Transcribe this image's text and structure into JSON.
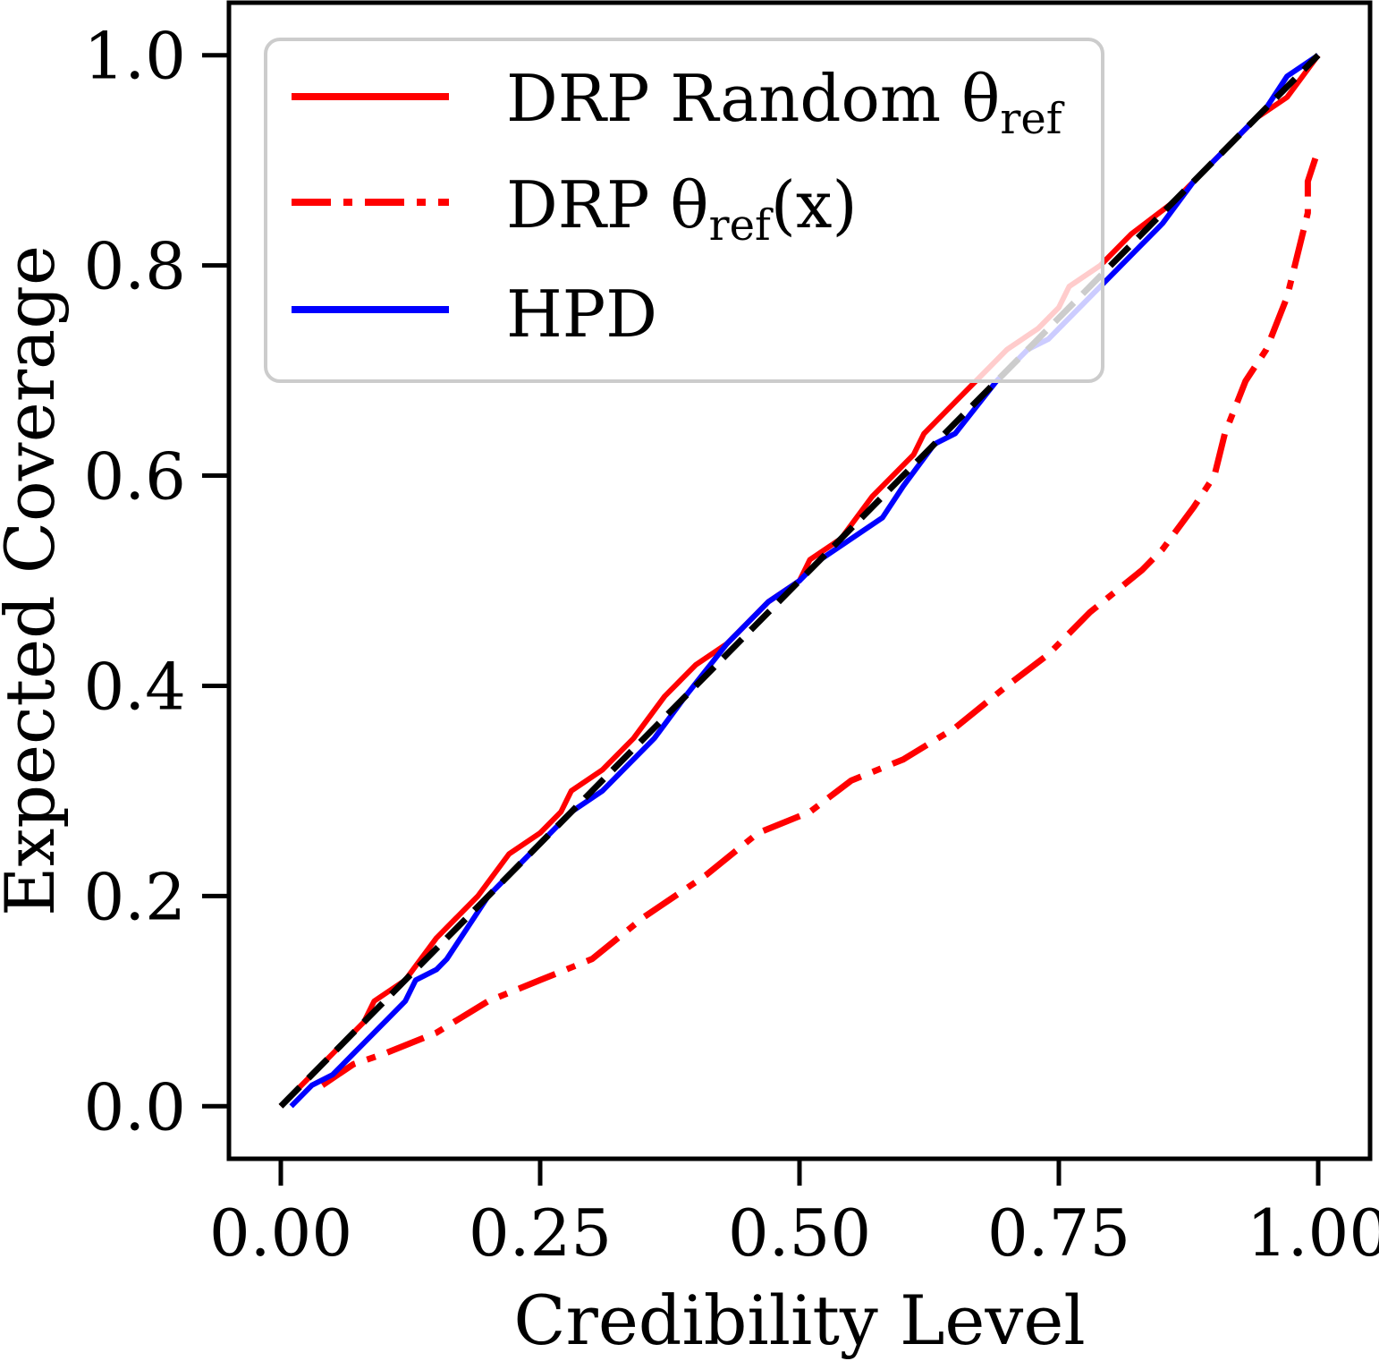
{
  "chart_data": {
    "type": "line",
    "xlabel": "Credibility Level",
    "ylabel": "Expected Coverage",
    "xlim": [
      -0.05,
      1.05
    ],
    "ylim": [
      -0.05,
      1.05
    ],
    "x_ticks": [
      "0.00",
      "0.25",
      "0.50",
      "0.75",
      "1.00"
    ],
    "y_ticks": [
      "0.0",
      "0.2",
      "0.4",
      "0.6",
      "0.8",
      "1.0"
    ],
    "grid": false,
    "legend_position": "top-left",
    "series": [
      {
        "name": "DRP Random θref",
        "legend_main": "DRP Random θ",
        "legend_sub": "ref",
        "color": "#ff0000",
        "style": "solid",
        "points": [
          [
            0.0,
            0.0
          ],
          [
            0.03,
            0.03
          ],
          [
            0.06,
            0.06
          ],
          [
            0.08,
            0.08
          ],
          [
            0.09,
            0.1
          ],
          [
            0.12,
            0.12
          ],
          [
            0.15,
            0.16
          ],
          [
            0.19,
            0.2
          ],
          [
            0.22,
            0.24
          ],
          [
            0.25,
            0.26
          ],
          [
            0.27,
            0.28
          ],
          [
            0.28,
            0.3
          ],
          [
            0.31,
            0.32
          ],
          [
            0.34,
            0.35
          ],
          [
            0.37,
            0.39
          ],
          [
            0.4,
            0.42
          ],
          [
            0.43,
            0.44
          ],
          [
            0.47,
            0.48
          ],
          [
            0.5,
            0.5
          ],
          [
            0.51,
            0.52
          ],
          [
            0.54,
            0.54
          ],
          [
            0.57,
            0.58
          ],
          [
            0.61,
            0.62
          ],
          [
            0.62,
            0.64
          ],
          [
            0.65,
            0.67
          ],
          [
            0.68,
            0.7
          ],
          [
            0.7,
            0.72
          ],
          [
            0.73,
            0.74
          ],
          [
            0.75,
            0.76
          ],
          [
            0.76,
            0.78
          ],
          [
            0.79,
            0.8
          ],
          [
            0.82,
            0.83
          ],
          [
            0.86,
            0.86
          ],
          [
            0.88,
            0.88
          ],
          [
            0.91,
            0.91
          ],
          [
            0.94,
            0.94
          ],
          [
            0.97,
            0.96
          ],
          [
            1.0,
            1.0
          ]
        ]
      },
      {
        "name": "DRP θref(x)",
        "legend_main": "DRP θ",
        "legend_sub": "ref",
        "legend_tail": "(x)",
        "color": "#ff0000",
        "style": "dashdot",
        "points": [
          [
            0.04,
            0.02
          ],
          [
            0.07,
            0.04
          ],
          [
            0.1,
            0.05
          ],
          [
            0.15,
            0.07
          ],
          [
            0.2,
            0.1
          ],
          [
            0.25,
            0.12
          ],
          [
            0.3,
            0.14
          ],
          [
            0.35,
            0.18
          ],
          [
            0.41,
            0.22
          ],
          [
            0.46,
            0.26
          ],
          [
            0.51,
            0.28
          ],
          [
            0.55,
            0.31
          ],
          [
            0.6,
            0.33
          ],
          [
            0.65,
            0.36
          ],
          [
            0.7,
            0.4
          ],
          [
            0.74,
            0.43
          ],
          [
            0.78,
            0.47
          ],
          [
            0.83,
            0.51
          ],
          [
            0.85,
            0.53
          ],
          [
            0.88,
            0.57
          ],
          [
            0.9,
            0.6
          ],
          [
            0.91,
            0.64
          ],
          [
            0.93,
            0.69
          ],
          [
            0.95,
            0.72
          ],
          [
            0.97,
            0.77
          ],
          [
            0.98,
            0.81
          ],
          [
            0.99,
            0.85
          ],
          [
            0.99,
            0.88
          ],
          [
            1.0,
            0.91
          ]
        ]
      },
      {
        "name": "HPD",
        "legend_main": "HPD",
        "color": "#0000ff",
        "style": "solid",
        "points": [
          [
            0.01,
            0.0
          ],
          [
            0.03,
            0.02
          ],
          [
            0.05,
            0.03
          ],
          [
            0.07,
            0.05
          ],
          [
            0.08,
            0.06
          ],
          [
            0.1,
            0.08
          ],
          [
            0.12,
            0.1
          ],
          [
            0.13,
            0.12
          ],
          [
            0.15,
            0.13
          ],
          [
            0.16,
            0.14
          ],
          [
            0.18,
            0.17
          ],
          [
            0.2,
            0.2
          ],
          [
            0.23,
            0.23
          ],
          [
            0.25,
            0.25
          ],
          [
            0.28,
            0.28
          ],
          [
            0.31,
            0.3
          ],
          [
            0.33,
            0.32
          ],
          [
            0.36,
            0.35
          ],
          [
            0.39,
            0.39
          ],
          [
            0.43,
            0.44
          ],
          [
            0.47,
            0.48
          ],
          [
            0.5,
            0.5
          ],
          [
            0.52,
            0.52
          ],
          [
            0.55,
            0.54
          ],
          [
            0.58,
            0.56
          ],
          [
            0.6,
            0.59
          ],
          [
            0.63,
            0.63
          ],
          [
            0.65,
            0.64
          ],
          [
            0.69,
            0.69
          ],
          [
            0.72,
            0.72
          ],
          [
            0.74,
            0.73
          ],
          [
            0.78,
            0.77
          ],
          [
            0.81,
            0.8
          ],
          [
            0.85,
            0.84
          ],
          [
            0.88,
            0.88
          ],
          [
            0.9,
            0.9
          ],
          [
            0.93,
            0.93
          ],
          [
            0.95,
            0.95
          ],
          [
            0.97,
            0.98
          ],
          [
            1.0,
            1.0
          ]
        ]
      },
      {
        "name": "",
        "color": "#000000",
        "style": "dashed",
        "points": [
          [
            0.0,
            0.0
          ],
          [
            1.0,
            1.0
          ]
        ]
      }
    ]
  }
}
